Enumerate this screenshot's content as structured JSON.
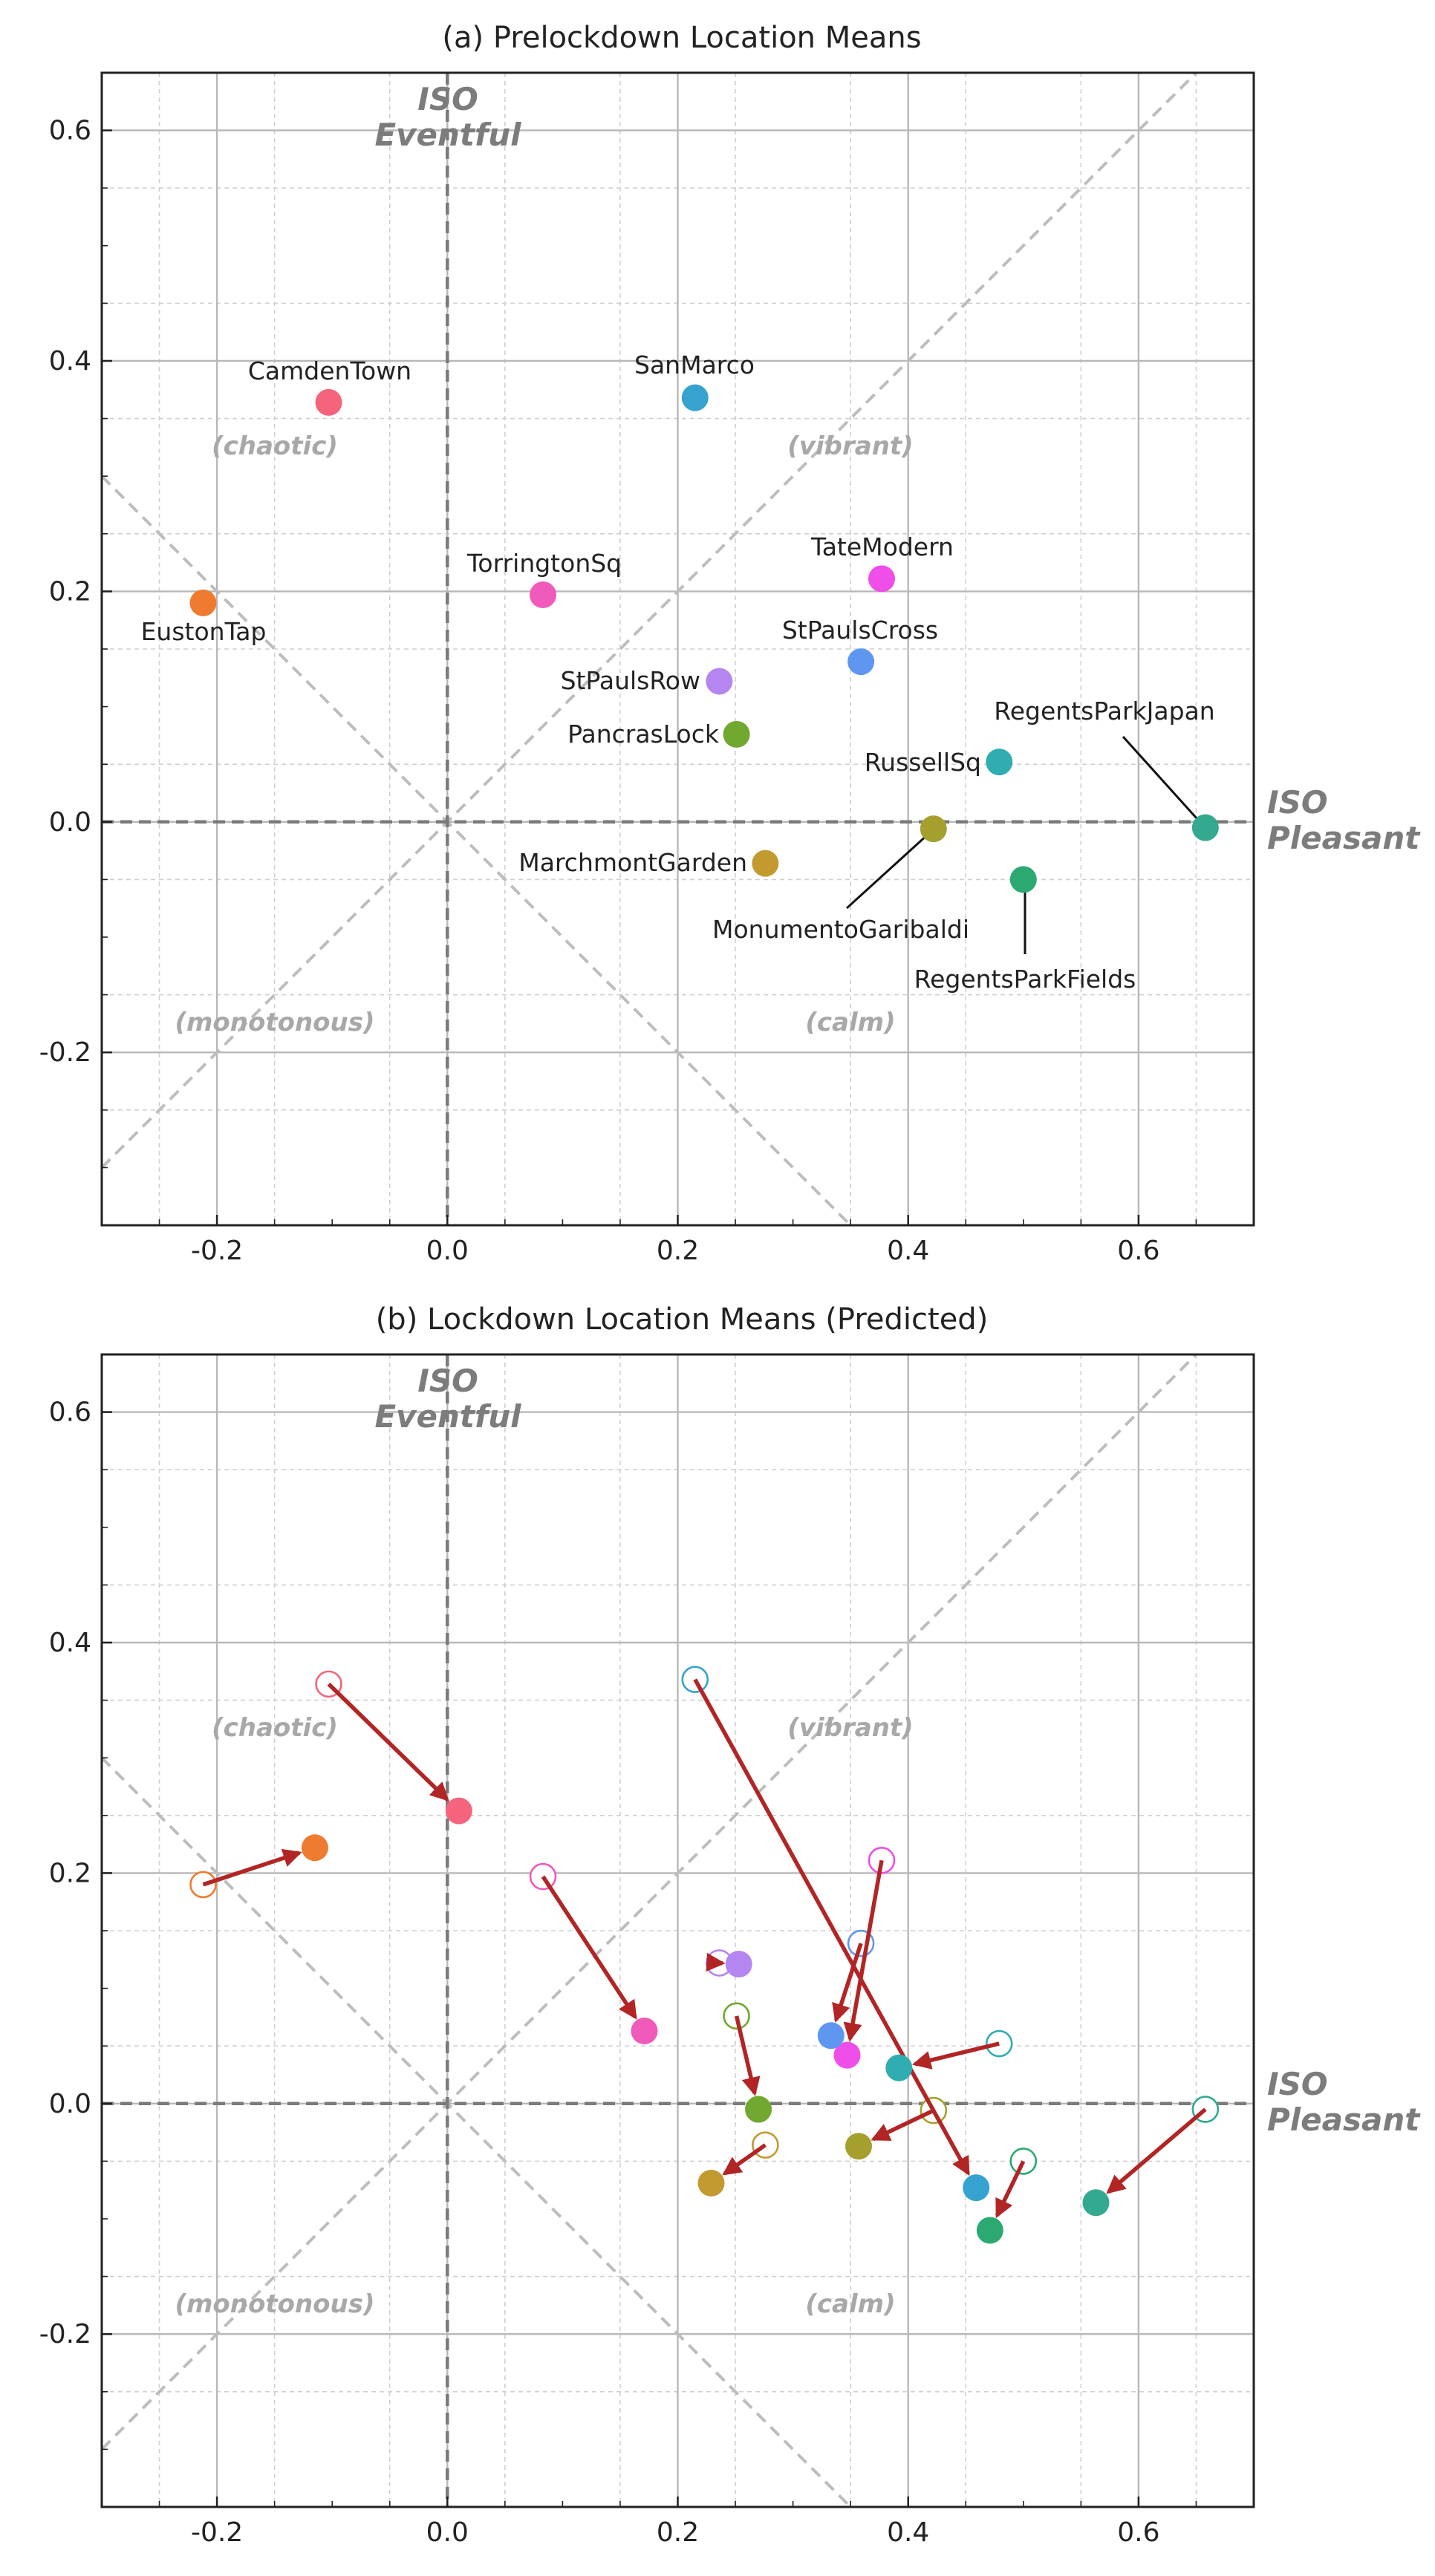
{
  "chart_data": [
    {
      "type": "scatter",
      "title": "(a) Prelockdown Location Means",
      "xlim": [
        -0.3,
        0.7
      ],
      "ylim": [
        -0.35,
        0.65
      ],
      "xticks": [
        "-0.2",
        "0.0",
        "0.2",
        "0.4",
        "0.6"
      ],
      "yticks": [
        "-0.2",
        "0.0",
        "0.2",
        "0.4",
        "0.6"
      ],
      "grid": true,
      "axis_labels": {
        "y_top": "ISO",
        "y_bottom": "Eventful",
        "x_top": "ISO",
        "x_bottom": "Pleasant"
      },
      "quadrant_labels": [
        "(chaotic)",
        "(vibrant)",
        "(monotonous)",
        "(calm)"
      ],
      "points": [
        {
          "name": "CamdenTown",
          "x": -0.103,
          "y": 0.364,
          "color": "#f5647c"
        },
        {
          "name": "EustonTap",
          "x": -0.212,
          "y": 0.19,
          "color": "#ee7b30"
        },
        {
          "name": "SanMarco",
          "x": 0.215,
          "y": 0.368,
          "color": "#36a2cf"
        },
        {
          "name": "TorringtonSq",
          "x": 0.083,
          "y": 0.197,
          "color": "#f05aba"
        },
        {
          "name": "TateModern",
          "x": 0.377,
          "y": 0.211,
          "color": "#ef4ee8"
        },
        {
          "name": "StPaulsCross",
          "x": 0.359,
          "y": 0.139,
          "color": "#5f97f0"
        },
        {
          "name": "StPaulsRow",
          "x": 0.236,
          "y": 0.122,
          "color": "#b586ef"
        },
        {
          "name": "PancrasLock",
          "x": 0.251,
          "y": 0.076,
          "color": "#70a830"
        },
        {
          "name": "RussellSq",
          "x": 0.479,
          "y": 0.052,
          "color": "#2fadb0"
        },
        {
          "name": "RegentsParkJapan",
          "x": 0.658,
          "y": -0.005,
          "color": "#33aa90"
        },
        {
          "name": "MonumentoGaribaldi",
          "x": 0.422,
          "y": -0.006,
          "color": "#a5a02e"
        },
        {
          "name": "MarchmontGarden",
          "x": 0.276,
          "y": -0.036,
          "color": "#c39a30"
        },
        {
          "name": "RegentsParkFields",
          "x": 0.5,
          "y": -0.05,
          "color": "#2ba970"
        }
      ]
    },
    {
      "type": "scatter",
      "title": "(b) Lockdown Location Means (Predicted)",
      "xlim": [
        -0.3,
        0.7
      ],
      "ylim": [
        -0.35,
        0.65
      ],
      "xticks": [
        "-0.2",
        "0.0",
        "0.2",
        "0.4",
        "0.6"
      ],
      "yticks": [
        "-0.2",
        "0.0",
        "0.2",
        "0.4",
        "0.6"
      ],
      "grid": true,
      "axis_labels": {
        "y_top": "ISO",
        "y_bottom": "Eventful",
        "x_top": "ISO",
        "x_bottom": "Pleasant"
      },
      "quadrant_labels": [
        "(chaotic)",
        "(vibrant)",
        "(monotonous)",
        "(calm)"
      ],
      "arrow_color": "#b22525",
      "points": [
        {
          "name": "CamdenTown",
          "from": [
            -0.103,
            0.364
          ],
          "to": [
            0.01,
            0.254
          ],
          "color": "#f5647c"
        },
        {
          "name": "EustonTap",
          "from": [
            -0.212,
            0.19
          ],
          "to": [
            -0.115,
            0.222
          ],
          "color": "#ee7b30"
        },
        {
          "name": "SanMarco",
          "from": [
            0.215,
            0.368
          ],
          "to": [
            0.459,
            -0.073
          ],
          "color": "#36a2cf"
        },
        {
          "name": "TorringtonSq",
          "from": [
            0.083,
            0.197
          ],
          "to": [
            0.171,
            0.063
          ],
          "color": "#f05aba"
        },
        {
          "name": "TateModern",
          "from": [
            0.377,
            0.211
          ],
          "to": [
            0.347,
            0.042
          ],
          "color": "#ef4ee8"
        },
        {
          "name": "StPaulsCross",
          "from": [
            0.359,
            0.139
          ],
          "to": [
            0.333,
            0.059
          ],
          "color": "#5f97f0"
        },
        {
          "name": "StPaulsRow",
          "from": [
            0.236,
            0.122
          ],
          "to": [
            0.253,
            0.121
          ],
          "color": "#b586ef"
        },
        {
          "name": "PancrasLock",
          "from": [
            0.251,
            0.076
          ],
          "to": [
            0.27,
            -0.005
          ],
          "color": "#70a830"
        },
        {
          "name": "RussellSq",
          "from": [
            0.479,
            0.052
          ],
          "to": [
            0.392,
            0.031
          ],
          "color": "#2fadb0"
        },
        {
          "name": "RegentsParkJapan",
          "from": [
            0.658,
            -0.005
          ],
          "to": [
            0.563,
            -0.086
          ],
          "color": "#33aa90"
        },
        {
          "name": "MonumentoGaribaldi",
          "from": [
            0.422,
            -0.006
          ],
          "to": [
            0.357,
            -0.037
          ],
          "color": "#a5a02e"
        },
        {
          "name": "MarchmontGarden",
          "from": [
            0.276,
            -0.036
          ],
          "to": [
            0.229,
            -0.069
          ],
          "color": "#c39a30"
        },
        {
          "name": "RegentsParkFields",
          "from": [
            0.5,
            -0.05
          ],
          "to": [
            0.471,
            -0.11
          ],
          "color": "#2ba970"
        }
      ]
    }
  ]
}
